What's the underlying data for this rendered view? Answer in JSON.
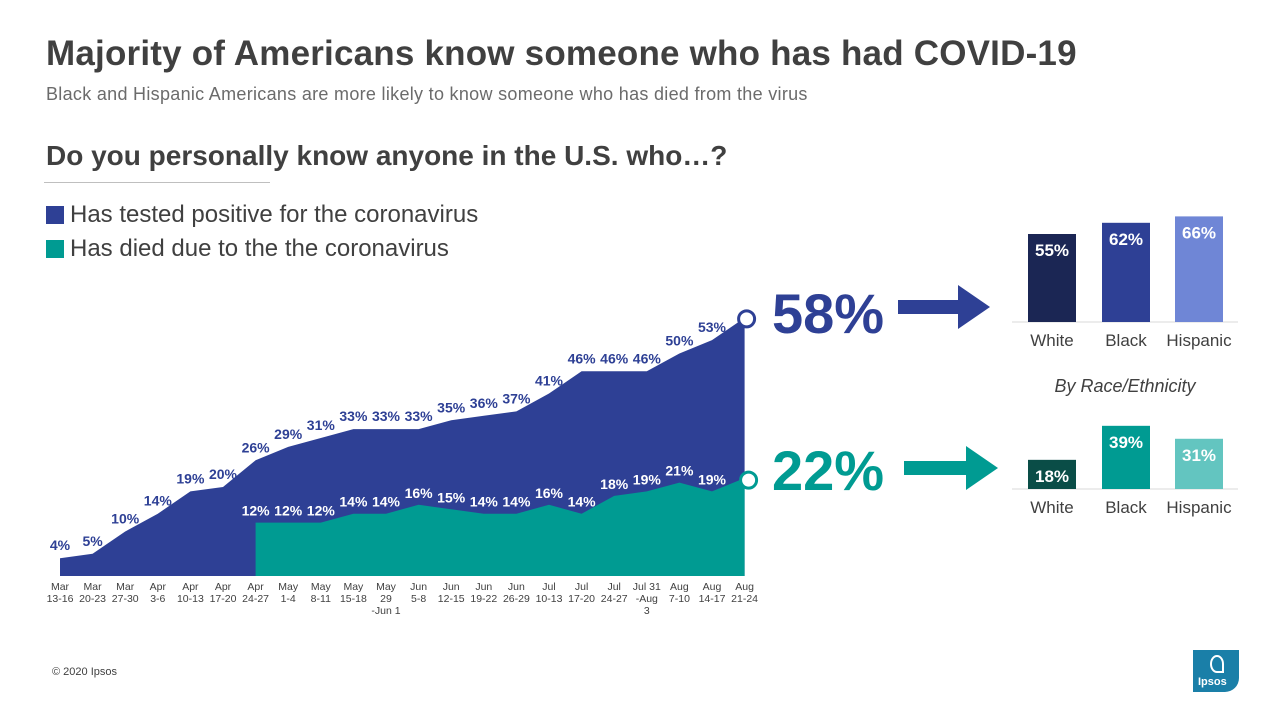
{
  "header": {
    "title": "Majority of Americans know someone who has had COVID-19",
    "subtitle": "Black and Hispanic Americans are more likely to know someone who has died from the virus",
    "question": "Do you personally know anyone in the U.S. who…?"
  },
  "legend": [
    {
      "label": "Has tested positive for the coronavirus",
      "color": "#2e4095"
    },
    {
      "label": "Has died due to the the coronavirus",
      "color": "#009b92"
    }
  ],
  "colors": {
    "positive": "#2e4095",
    "died": "#009b92",
    "white_positive": "#1b2654",
    "black_positive": "#2e4095",
    "hispanic_positive": "#6f86d6",
    "white_died": "#0a4d47",
    "black_died": "#009b92",
    "hispanic_died": "#63c5c0"
  },
  "chart_data": [
    {
      "type": "area",
      "categories": [
        [
          "Mar",
          "13-16"
        ],
        [
          "Mar",
          "20-23"
        ],
        [
          "Mar",
          "27-30"
        ],
        [
          "Apr",
          "3-6"
        ],
        [
          "Apr",
          "10-13"
        ],
        [
          "Apr",
          "17-20"
        ],
        [
          "Apr",
          "24-27"
        ],
        [
          "May",
          "1-4"
        ],
        [
          "May",
          "8-11"
        ],
        [
          "May",
          "15-18"
        ],
        [
          "May",
          "29",
          "-Jun 1"
        ],
        [
          "Jun",
          "5-8"
        ],
        [
          "Jun",
          "12-15"
        ],
        [
          "Jun",
          "19-22"
        ],
        [
          "Jun",
          "26-29"
        ],
        [
          "Jul",
          "10-13"
        ],
        [
          "Jul",
          "17-20"
        ],
        [
          "Jul",
          "24-27"
        ],
        [
          "Jul 31",
          "-Aug",
          "3"
        ],
        [
          "Aug",
          "7-10"
        ],
        [
          "Aug",
          "14-17"
        ],
        [
          "Aug",
          "21-24"
        ]
      ],
      "series": [
        {
          "name": "Has tested positive for the coronavirus",
          "values": [
            4,
            5,
            10,
            14,
            19,
            20,
            26,
            29,
            31,
            33,
            33,
            33,
            35,
            36,
            37,
            41,
            46,
            46,
            46,
            50,
            53,
            58
          ]
        },
        {
          "name": "Has died due to the the coronavirus",
          "values": [
            null,
            null,
            null,
            null,
            null,
            null,
            12,
            12,
            12,
            14,
            14,
            16,
            15,
            14,
            14,
            16,
            14,
            18,
            19,
            21,
            19,
            22
          ]
        }
      ],
      "ylim": [
        0,
        60
      ],
      "callouts": [
        "58%",
        "22%"
      ]
    },
    {
      "type": "bar",
      "title": "By Race/Ethnicity",
      "measure": "Has tested positive for the coronavirus",
      "categories": [
        "White",
        "Black",
        "Hispanic"
      ],
      "values": [
        55,
        62,
        66
      ]
    },
    {
      "type": "bar",
      "measure": "Has died due to the the coronavirus",
      "categories": [
        "White",
        "Black",
        "Hispanic"
      ],
      "values": [
        18,
        39,
        31
      ]
    }
  ],
  "footer": {
    "copyright": "© 2020 Ipsos",
    "logo_text": "Ipsos"
  }
}
